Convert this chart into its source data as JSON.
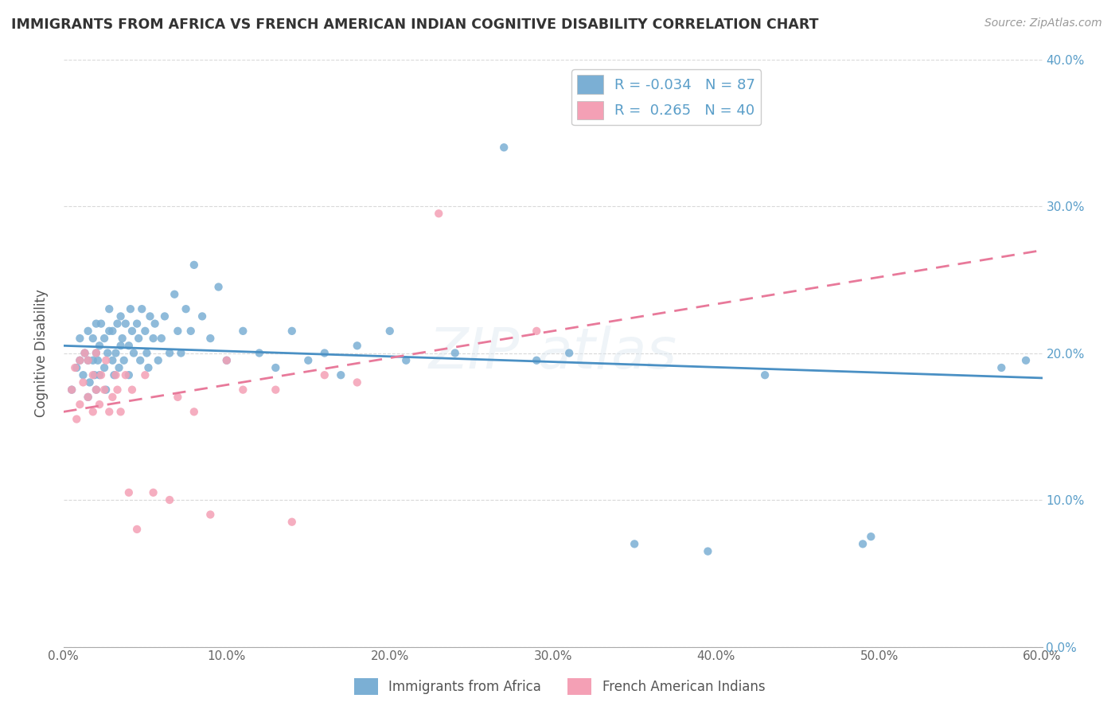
{
  "title": "IMMIGRANTS FROM AFRICA VS FRENCH AMERICAN INDIAN COGNITIVE DISABILITY CORRELATION CHART",
  "source": "Source: ZipAtlas.com",
  "ylabel": "Cognitive Disability",
  "legend_label1": "Immigrants from Africa",
  "legend_label2": "French American Indians",
  "R1": -0.034,
  "N1": 87,
  "R2": 0.265,
  "N2": 40,
  "blue_color": "#7bafd4",
  "pink_color": "#f4a0b5",
  "blue_line_color": "#4a90c4",
  "pink_line_color": "#e8799a",
  "xlim": [
    0.0,
    0.6
  ],
  "ylim": [
    0.0,
    0.4
  ],
  "x_ticks": [
    0.0,
    0.1,
    0.2,
    0.3,
    0.4,
    0.5,
    0.6
  ],
  "y_ticks": [
    0.0,
    0.1,
    0.2,
    0.3,
    0.4
  ],
  "background_color": "#ffffff",
  "grid_color": "#d0d0d0",
  "blue_scatter_x": [
    0.005,
    0.008,
    0.01,
    0.01,
    0.012,
    0.013,
    0.015,
    0.015,
    0.015,
    0.016,
    0.018,
    0.018,
    0.019,
    0.02,
    0.02,
    0.02,
    0.021,
    0.022,
    0.022,
    0.023,
    0.025,
    0.025,
    0.026,
    0.027,
    0.028,
    0.028,
    0.03,
    0.03,
    0.031,
    0.032,
    0.033,
    0.034,
    0.035,
    0.035,
    0.036,
    0.037,
    0.038,
    0.04,
    0.04,
    0.041,
    0.042,
    0.043,
    0.045,
    0.046,
    0.047,
    0.048,
    0.05,
    0.051,
    0.052,
    0.053,
    0.055,
    0.056,
    0.058,
    0.06,
    0.062,
    0.065,
    0.068,
    0.07,
    0.072,
    0.075,
    0.078,
    0.08,
    0.085,
    0.09,
    0.095,
    0.1,
    0.11,
    0.12,
    0.13,
    0.14,
    0.15,
    0.16,
    0.17,
    0.18,
    0.2,
    0.21,
    0.24,
    0.27,
    0.29,
    0.31,
    0.35,
    0.395,
    0.43,
    0.49,
    0.495,
    0.575,
    0.59
  ],
  "blue_scatter_y": [
    0.175,
    0.19,
    0.195,
    0.21,
    0.185,
    0.2,
    0.17,
    0.195,
    0.215,
    0.18,
    0.195,
    0.21,
    0.185,
    0.175,
    0.2,
    0.22,
    0.195,
    0.185,
    0.205,
    0.22,
    0.19,
    0.21,
    0.175,
    0.2,
    0.215,
    0.23,
    0.195,
    0.215,
    0.185,
    0.2,
    0.22,
    0.19,
    0.205,
    0.225,
    0.21,
    0.195,
    0.22,
    0.185,
    0.205,
    0.23,
    0.215,
    0.2,
    0.22,
    0.21,
    0.195,
    0.23,
    0.215,
    0.2,
    0.19,
    0.225,
    0.21,
    0.22,
    0.195,
    0.21,
    0.225,
    0.2,
    0.24,
    0.215,
    0.2,
    0.23,
    0.215,
    0.26,
    0.225,
    0.21,
    0.245,
    0.195,
    0.215,
    0.2,
    0.19,
    0.215,
    0.195,
    0.2,
    0.185,
    0.205,
    0.215,
    0.195,
    0.2,
    0.34,
    0.195,
    0.2,
    0.07,
    0.065,
    0.185,
    0.07,
    0.075,
    0.19,
    0.195
  ],
  "pink_scatter_x": [
    0.005,
    0.007,
    0.008,
    0.01,
    0.01,
    0.012,
    0.013,
    0.015,
    0.015,
    0.018,
    0.018,
    0.02,
    0.02,
    0.022,
    0.023,
    0.025,
    0.026,
    0.028,
    0.03,
    0.032,
    0.033,
    0.035,
    0.038,
    0.04,
    0.042,
    0.045,
    0.05,
    0.055,
    0.065,
    0.07,
    0.08,
    0.09,
    0.1,
    0.11,
    0.13,
    0.14,
    0.16,
    0.18,
    0.23,
    0.29
  ],
  "pink_scatter_y": [
    0.175,
    0.19,
    0.155,
    0.165,
    0.195,
    0.18,
    0.2,
    0.17,
    0.195,
    0.185,
    0.16,
    0.175,
    0.2,
    0.165,
    0.185,
    0.175,
    0.195,
    0.16,
    0.17,
    0.185,
    0.175,
    0.16,
    0.185,
    0.105,
    0.175,
    0.08,
    0.185,
    0.105,
    0.1,
    0.17,
    0.16,
    0.09,
    0.195,
    0.175,
    0.175,
    0.085,
    0.185,
    0.18,
    0.295,
    0.215
  ],
  "blue_line_x0": 0.0,
  "blue_line_x1": 0.6,
  "blue_line_y0": 0.205,
  "blue_line_y1": 0.183,
  "pink_line_x0": 0.0,
  "pink_line_x1": 0.6,
  "pink_line_y0": 0.16,
  "pink_line_y1": 0.27
}
